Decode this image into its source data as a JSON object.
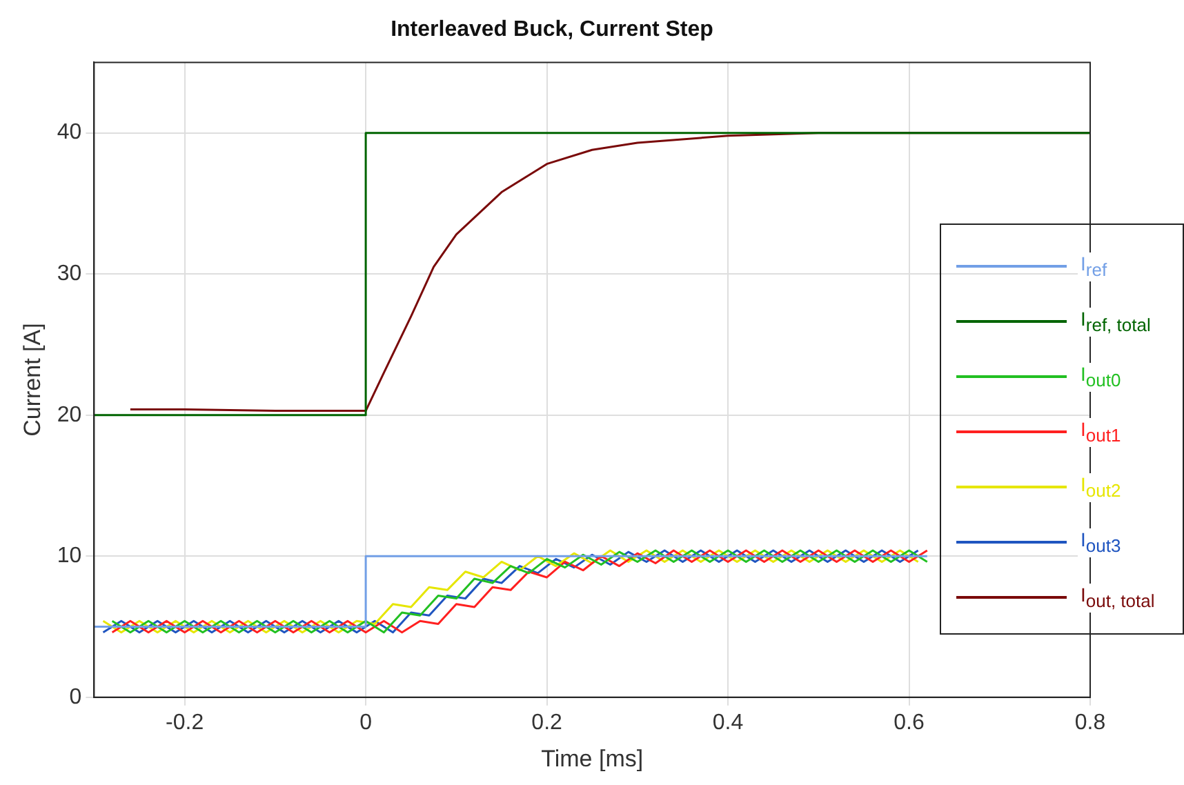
{
  "chart_data": {
    "type": "line",
    "title": "Interleaved Buck, Current Step",
    "xlabel": "Time [ms]",
    "ylabel": "Current [A]",
    "xlim": [
      -0.3,
      0.8
    ],
    "xticks": [
      -0.2,
      0,
      0.2,
      0.4,
      0.6,
      0.8
    ],
    "ylim": [
      0,
      45
    ],
    "yticks": [
      0,
      10,
      20,
      30,
      40
    ],
    "grid": true,
    "legend": "right",
    "marker": "none",
    "line_style": "solid",
    "x": [
      -0.28,
      -0.26,
      -0.24,
      -0.22,
      -0.2,
      -0.18,
      -0.16,
      -0.14,
      -0.12,
      -0.1,
      -0.08,
      -0.06,
      -0.04,
      -0.02,
      0,
      0.02,
      0.04,
      0.06,
      0.08,
      0.1,
      0.12,
      0.14,
      0.16,
      0.18,
      0.2,
      0.22,
      0.24,
      0.26,
      0.28,
      0.3,
      0.32,
      0.34,
      0.36,
      0.38,
      0.4,
      0.42,
      0.44,
      0.46,
      0.48,
      0.5,
      0.52,
      0.54,
      0.56,
      0.58,
      0.6,
      0.62
    ],
    "series": [
      {
        "name": "I$_{ref}$",
        "color": "#729fe6",
        "x": [
          -0.3,
          0,
          0,
          0.62
        ],
        "values": [
          5,
          5,
          10,
          10
        ]
      },
      {
        "name": "I$_{ref, total}$",
        "color": "#006400",
        "x": [
          -0.3,
          0,
          0,
          0.8
        ],
        "values": [
          20,
          20,
          40,
          40
        ]
      },
      {
        "name": "I$_{out0}$",
        "color": "#22c022",
        "values": [
          5.4,
          4.6,
          5.4,
          4.6,
          5.4,
          4.6,
          5.4,
          4.6,
          5.4,
          4.6,
          5.4,
          4.6,
          5.4,
          4.6,
          5.4,
          4.6,
          6.0,
          5.8,
          7.2,
          7.0,
          8.4,
          8.1,
          9.3,
          8.8,
          9.8,
          9.2,
          10.1,
          9.4,
          10.3,
          9.6,
          10.4,
          9.6,
          10.4,
          9.6,
          10.4,
          9.6,
          10.4,
          9.6,
          10.4,
          9.6,
          10.4,
          9.6,
          10.4,
          9.6,
          10.4,
          9.6
        ]
      },
      {
        "name": "I$_{out1}$",
        "color": "#ff2020",
        "values": [
          4.6,
          5.4,
          4.6,
          5.4,
          4.6,
          5.4,
          4.6,
          5.4,
          4.6,
          5.4,
          4.6,
          5.4,
          4.6,
          5.4,
          4.6,
          5.4,
          4.6,
          5.4,
          5.2,
          6.6,
          6.4,
          7.8,
          7.6,
          8.9,
          8.5,
          9.6,
          9.0,
          10.0,
          9.3,
          10.2,
          9.5,
          10.4,
          9.6,
          10.4,
          9.6,
          10.4,
          9.6,
          10.4,
          9.6,
          10.4,
          9.6,
          10.4,
          9.6,
          10.4,
          9.6,
          10.4
        ]
      },
      {
        "name": "I$_{out2}$",
        "color": "#e6e600",
        "x": [
          -0.29,
          -0.27,
          -0.25,
          -0.23,
          -0.21,
          -0.19,
          -0.17,
          -0.15,
          -0.13,
          -0.11,
          -0.09,
          -0.07,
          -0.05,
          -0.03,
          -0.01,
          0.01,
          0.03,
          0.05,
          0.07,
          0.09,
          0.11,
          0.13,
          0.15,
          0.17,
          0.19,
          0.21,
          0.23,
          0.25,
          0.27,
          0.29,
          0.31,
          0.33,
          0.35,
          0.37,
          0.39,
          0.41,
          0.43,
          0.45,
          0.47,
          0.49,
          0.51,
          0.53,
          0.55,
          0.57,
          0.59,
          0.61
        ],
        "values": [
          5.4,
          4.6,
          5.4,
          4.6,
          5.4,
          4.6,
          5.4,
          4.6,
          5.4,
          4.6,
          5.4,
          4.6,
          5.4,
          4.6,
          5.4,
          5.2,
          6.6,
          6.4,
          7.8,
          7.6,
          8.9,
          8.5,
          9.6,
          9.0,
          10.0,
          9.3,
          10.2,
          9.5,
          10.4,
          9.6,
          10.4,
          9.6,
          10.4,
          9.6,
          10.4,
          9.6,
          10.4,
          9.6,
          10.4,
          9.6,
          10.4,
          9.6,
          10.4,
          9.6,
          10.4,
          9.6
        ]
      },
      {
        "name": "I$_{out3}$",
        "color": "#1f55c0",
        "x": [
          -0.29,
          -0.27,
          -0.25,
          -0.23,
          -0.21,
          -0.19,
          -0.17,
          -0.15,
          -0.13,
          -0.11,
          -0.09,
          -0.07,
          -0.05,
          -0.03,
          -0.01,
          0.01,
          0.03,
          0.05,
          0.07,
          0.09,
          0.11,
          0.13,
          0.15,
          0.17,
          0.19,
          0.21,
          0.23,
          0.25,
          0.27,
          0.29,
          0.31,
          0.33,
          0.35,
          0.37,
          0.39,
          0.41,
          0.43,
          0.45,
          0.47,
          0.49,
          0.51,
          0.53,
          0.55,
          0.57,
          0.59,
          0.61
        ],
        "values": [
          4.6,
          5.4,
          4.6,
          5.4,
          4.6,
          5.4,
          4.6,
          5.4,
          4.6,
          5.4,
          4.6,
          5.4,
          4.6,
          5.4,
          4.6,
          5.4,
          4.6,
          6.0,
          5.8,
          7.2,
          7.0,
          8.4,
          8.1,
          9.3,
          8.8,
          9.8,
          9.2,
          10.1,
          9.4,
          10.3,
          9.6,
          10.4,
          9.6,
          10.4,
          9.6,
          10.4,
          9.6,
          10.4,
          9.6,
          10.4,
          9.6,
          10.4,
          9.6,
          10.4,
          9.6,
          10.4
        ]
      },
      {
        "name": "I$_{out, total}$",
        "color": "#7a0a0a",
        "x": [
          -0.26,
          -0.2,
          -0.1,
          0,
          0.02,
          0.05,
          0.075,
          0.1,
          0.15,
          0.2,
          0.25,
          0.3,
          0.4,
          0.5,
          0.8
        ],
        "values": [
          20.4,
          20.4,
          20.3,
          20.3,
          23,
          27,
          30.5,
          32.8,
          35.8,
          37.8,
          38.8,
          39.3,
          39.8,
          40,
          40
        ]
      }
    ]
  }
}
